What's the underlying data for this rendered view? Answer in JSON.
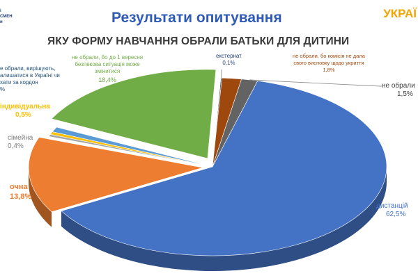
{
  "header": {
    "logo_lines": [
      "і",
      "СМЕН",
      "и"
    ],
    "brand": "УКРАЇ",
    "title": "Результати опитування"
  },
  "chart_data": {
    "type": "pie",
    "title": "ЯКУ ФОРМУ НАВЧАННЯ ОБРАЛИ БАТЬКИ ДЛЯ ДИТИНИ",
    "slices": [
      {
        "name": "дистанцій",
        "value": 62.5,
        "color": "#4472c4",
        "text": "62,5%"
      },
      {
        "name": "очна",
        "value": 13.8,
        "color": "#ed7d31",
        "text": "13,8%"
      },
      {
        "name": "сімейна",
        "value": 0.4,
        "color": "#a5a5a5",
        "text": "0,4%"
      },
      {
        "name": "індивідуальна",
        "value": 0.5,
        "color": "#ffc000",
        "text": "0,5%"
      },
      {
        "name": "е обрали, вирішують, алишатися в Україні чи хати за кордон",
        "value": 0.9,
        "color": "#5b9bd5",
        "text": "%"
      },
      {
        "name": "не обрали, бо до 1 вересня безпекова ситуація може змінитися",
        "value": 18.4,
        "color": "#70ad47",
        "text": "18,4%"
      },
      {
        "name": "екстернат",
        "value": 0.1,
        "color": "#264478",
        "text": "0,1%"
      },
      {
        "name": "не обрали, бо комісія не дала свого висновку щодо укриття",
        "value": 1.8,
        "color": "#9e480e",
        "text": "1,8%"
      },
      {
        "name": "не обрали",
        "value": 1.5,
        "color": "#636363",
        "text": "1,5%"
      }
    ],
    "legend": "none",
    "style": "3d-exploded"
  },
  "labels": {
    "distance_name": "дистанцій",
    "distance_pct": "62,5%",
    "ochna_name": "очна",
    "ochna_pct": "13,8%",
    "simeina_name": "сімейна",
    "simeina_pct": "0,4%",
    "indyv_name": "індивідуальна",
    "indyv_pct": "0,5%",
    "undecided_line1": "е обрали, вирішують,",
    "undecided_line2": "алишатися в Україні чи",
    "undecided_line3": "хати за кордон",
    "undecided_pct": "%",
    "security_line1": "не обрали, бо до 1 вересня",
    "security_line2": "безпекова ситуація може",
    "security_line3": "змінитися",
    "security_pct": "18,4%",
    "externat_name": "екстернат",
    "externat_pct": "0,1%",
    "commission_line1": "не обрали, бо комісія не дала",
    "commission_line2": "свого висновку щодо укриття",
    "commission_pct": "1,8%",
    "notchosen_name": "не обрали",
    "notchosen_pct": "1,5%"
  }
}
